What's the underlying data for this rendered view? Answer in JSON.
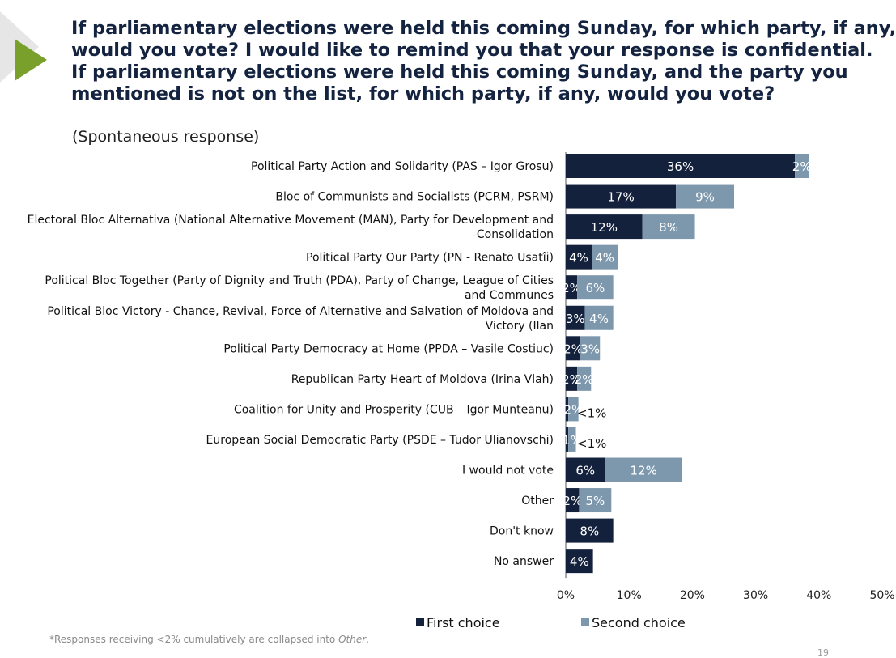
{
  "title_lines": [
    "If parliamentary elections were held this coming Sunday, for which party, if any,",
    "would you vote? I would like to remind you that your response is confidential.",
    "If parliamentary elections were held this coming Sunday, and the party you",
    "mentioned is not on the list, for which party, if any, would you vote?"
  ],
  "subtitle": "(Spontaneous response)",
  "footnote": {
    "text": "*Responses receiving <2% cumulatively are collapsed into ",
    "italic": "Other",
    "end": "."
  },
  "page_number": "19",
  "colors": {
    "first": "#14213d",
    "second": "#7d98ad",
    "accent": "#7aa02c"
  },
  "chart_data": {
    "type": "bar",
    "orientation": "horizontal",
    "stacked": true,
    "categories": [
      [
        "Political Party Action and Solidarity (PAS – Igor Grosu)"
      ],
      [
        "Bloc of Communists and Socialists (PCRM, PSRM)"
      ],
      [
        "Electoral Bloc Alternativa (National Alternative Movement (MAN), Party for Development and",
        "Consolidation"
      ],
      [
        "Political Party Our Party (PN - Renato Usatîi)"
      ],
      [
        "Political Bloc Together (Party of Dignity and Truth (PDA), Party of Change, League of Cities",
        "and Communes"
      ],
      [
        "Political Bloc Victory - Chance, Revival, Force of Alternative and Salvation of Moldova and",
        "Victory (Ilan"
      ],
      [
        "Political Party Democracy at Home (PPDA – Vasile Costiuc)"
      ],
      [
        "Republican Party Heart of Moldova (Irina Vlah)"
      ],
      [
        "Coalition for Unity and Prosperity (CUB – Igor Munteanu)"
      ],
      [
        "European Social Democratic Party (PSDE – Tudor Ulianovschi)"
      ],
      [
        "I would not vote"
      ],
      [
        "Other"
      ],
      [
        "Don't know"
      ],
      [
        "No answer"
      ]
    ],
    "series": [
      {
        "name": "First choice",
        "values": [
          36.2,
          17.4,
          12.1,
          4.1,
          1.8,
          3.0,
          2.3,
          1.8,
          0.4,
          0.4,
          6.2,
          2.1,
          7.5,
          4.3
        ],
        "labels": [
          "36%",
          "17%",
          "12%",
          "4%",
          "2%",
          "3%",
          "2%",
          "2%",
          "",
          "",
          "6%",
          "2%",
          "8%",
          "4%"
        ]
      },
      {
        "name": "Second choice",
        "values": [
          2.2,
          9.2,
          8.3,
          4.1,
          5.7,
          4.5,
          3.1,
          2.2,
          1.6,
          1.2,
          12.2,
          5.1,
          0,
          0
        ],
        "labels": [
          "2%",
          "9%",
          "8%",
          "4%",
          "6%",
          "4%",
          "3%",
          "2%",
          "2%",
          "1%",
          "12%",
          "5%",
          "",
          ""
        ]
      }
    ],
    "first_below_bar_labels": [
      "",
      "",
      "",
      "",
      "",
      "",
      "",
      "",
      "<1%",
      "<1%",
      "",
      "",
      "",
      ""
    ],
    "xlim": [
      0,
      50
    ],
    "x_ticks": [
      "0%",
      "10%",
      "20%",
      "30%",
      "40%",
      "50%"
    ],
    "grid": false,
    "legend_position": "bottom"
  }
}
